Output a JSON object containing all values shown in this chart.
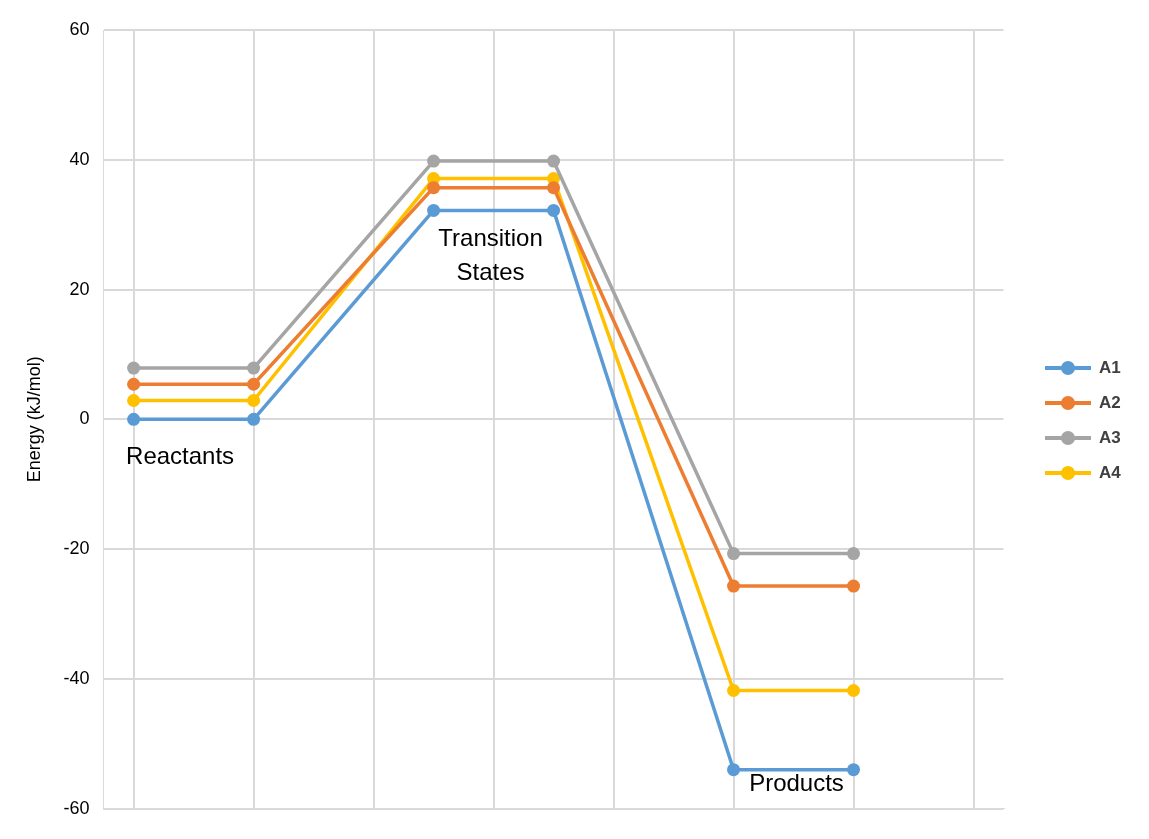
{
  "chart_data": {
    "type": "line",
    "ylabel": "Energy (kJ/mol)",
    "categories": [
      null,
      null,
      null,
      null,
      null,
      null,
      null,
      null,
      null,
      null,
      null,
      null,
      null,
      null,
      null
    ],
    "ylim": [
      -60,
      60
    ],
    "yticks": [
      -60,
      -40,
      -20,
      0,
      20,
      40,
      60
    ],
    "grid": true,
    "legend": "right",
    "marker": "circle",
    "line_style": "solid",
    "series": [
      {
        "name": "A1",
        "color": "#5b9bd5",
        "values": [
          0,
          null,
          0,
          null,
          null,
          32.2,
          null,
          32.2,
          null,
          null,
          -54,
          null,
          -54,
          null,
          null
        ]
      },
      {
        "name": "A2",
        "color": "#ed7d31",
        "values": [
          5.4,
          null,
          5.4,
          null,
          null,
          35.7,
          null,
          35.7,
          null,
          null,
          -25.7,
          null,
          -25.7,
          null,
          null
        ]
      },
      {
        "name": "A3",
        "color": "#a5a5a5",
        "values": [
          7.9,
          null,
          7.9,
          null,
          null,
          39.8,
          null,
          39.8,
          null,
          null,
          -20.7,
          null,
          -20.7,
          null,
          null
        ]
      },
      {
        "name": "A4",
        "color": "#ffc000",
        "values": [
          2.9,
          null,
          2.9,
          null,
          null,
          37.1,
          null,
          37.1,
          null,
          null,
          -41.8,
          null,
          -41.8,
          null,
          null
        ]
      }
    ],
    "annotations": [
      "Reactants",
      "Transition States",
      "Products"
    ]
  }
}
